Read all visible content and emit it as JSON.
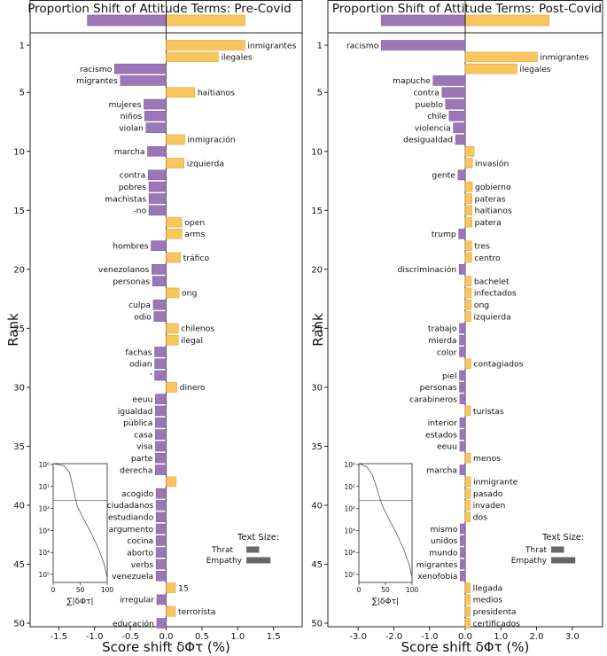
{
  "colors": {
    "positive": "#F8C65E",
    "negative": "#9C77B8",
    "axis": "#222222",
    "positive_edge": "#E0A63A",
    "negative_edge": "#7E5B9C"
  },
  "chart_data": [
    {
      "type": "bar",
      "orientation": "horizontal",
      "title": "Proportion Shift of Attitude Terms: Pre-Covid",
      "xlabel": "Score shift δΦτ (%)",
      "ylabel": "Rank",
      "xlim": [
        -1.9,
        1.9
      ],
      "xticks": [
        -1.5,
        -1.0,
        -0.5,
        0.0,
        0.5,
        1.0,
        1.5
      ],
      "xtick_labels": [
        "-1.5",
        "-1.0",
        "-0.5",
        "0.0",
        "0.5",
        "1.0",
        "1.5"
      ],
      "yticks": [
        1,
        5,
        10,
        15,
        20,
        25,
        30,
        35,
        40,
        45,
        50
      ],
      "summary_bar": {
        "negative": -1.1,
        "positive": 1.1
      },
      "bars": [
        {
          "rank": 1,
          "label": "inmigrantes",
          "value": 1.1
        },
        {
          "rank": 2,
          "label": "ilegales",
          "value": 0.73
        },
        {
          "rank": 3,
          "label": "racismo",
          "value": -0.72
        },
        {
          "rank": 4,
          "label": "migrantes",
          "value": -0.64
        },
        {
          "rank": 5,
          "label": "haitianos",
          "value": 0.4
        },
        {
          "rank": 6,
          "label": "mujeres",
          "value": -0.31
        },
        {
          "rank": 7,
          "label": "niños",
          "value": -0.3
        },
        {
          "rank": 8,
          "label": "violan",
          "value": -0.28
        },
        {
          "rank": 9,
          "label": "inmigración",
          "value": 0.26
        },
        {
          "rank": 10,
          "label": "marcha",
          "value": -0.26
        },
        {
          "rank": 11,
          "label": "izquierda",
          "value": 0.25
        },
        {
          "rank": 12,
          "label": "contra",
          "value": -0.25
        },
        {
          "rank": 13,
          "label": "pobres",
          "value": -0.24
        },
        {
          "rank": 14,
          "label": "machistas",
          "value": -0.24
        },
        {
          "rank": 15,
          "label": "-no",
          "value": -0.24
        },
        {
          "rank": 16,
          "label": "open",
          "value": 0.22
        },
        {
          "rank": 17,
          "label": "arms",
          "value": 0.22
        },
        {
          "rank": 18,
          "label": "hombres",
          "value": -0.21
        },
        {
          "rank": 19,
          "label": "tráfico",
          "value": 0.2
        },
        {
          "rank": 20,
          "label": "venezolanos",
          "value": -0.2
        },
        {
          "rank": 21,
          "label": "personas",
          "value": -0.19
        },
        {
          "rank": 22,
          "label": "ong",
          "value": 0.18
        },
        {
          "rank": 23,
          "label": "culpa",
          "value": -0.18
        },
        {
          "rank": 24,
          "label": "odio",
          "value": -0.17
        },
        {
          "rank": 25,
          "label": "chilenos",
          "value": 0.17
        },
        {
          "rank": 26,
          "label": "ilegal",
          "value": 0.17
        },
        {
          "rank": 27,
          "label": "fachas",
          "value": -0.16
        },
        {
          "rank": 28,
          "label": "odian",
          "value": -0.16
        },
        {
          "rank": 29,
          "label": "'",
          "value": -0.16
        },
        {
          "rank": 30,
          "label": "dinero",
          "value": 0.15
        },
        {
          "rank": 31,
          "label": "eeuu",
          "value": -0.15
        },
        {
          "rank": 32,
          "label": "igualdad",
          "value": -0.15
        },
        {
          "rank": 33,
          "label": "pública",
          "value": -0.15
        },
        {
          "rank": 34,
          "label": "casa",
          "value": -0.15
        },
        {
          "rank": 35,
          "label": "visa",
          "value": -0.15
        },
        {
          "rank": 36,
          "label": "parte",
          "value": -0.15
        },
        {
          "rank": 37,
          "label": "derecha",
          "value": -0.15
        },
        {
          "rank": 38,
          "label": "",
          "value": 0.14
        },
        {
          "rank": 39,
          "label": "acogido",
          "value": -0.14
        },
        {
          "rank": 40,
          "label": "ciudadanos",
          "value": -0.14
        },
        {
          "rank": 41,
          "label": "estudiando",
          "value": -0.14
        },
        {
          "rank": 42,
          "label": "argumento",
          "value": -0.14
        },
        {
          "rank": 43,
          "label": "cocina",
          "value": -0.14
        },
        {
          "rank": 44,
          "label": "aborto",
          "value": -0.14
        },
        {
          "rank": 45,
          "label": "verbs",
          "value": -0.14
        },
        {
          "rank": 46,
          "label": "venezuela",
          "value": -0.14
        },
        {
          "rank": 47,
          "label": "15",
          "value": 0.13
        },
        {
          "rank": 48,
          "label": "irregular",
          "value": -0.13
        },
        {
          "rank": 49,
          "label": "terrorista",
          "value": 0.13
        },
        {
          "rank": 50,
          "label": "educación",
          "value": -0.13
        }
      ],
      "inset": {
        "xlabel": "∑|δΦτ|",
        "xticks": [
          "0",
          "50",
          "100"
        ],
        "yticks": [
          "10⁰",
          "10¹",
          "10²",
          "10³",
          "10⁴",
          "10⁵"
        ],
        "curve": [
          [
            0,
            0
          ],
          [
            20,
            0.1
          ],
          [
            30,
            0.4
          ],
          [
            35,
            0.9
          ],
          [
            40,
            1.5
          ],
          [
            45,
            2.0
          ],
          [
            55,
            2.5
          ],
          [
            70,
            3.2
          ],
          [
            85,
            4.0
          ],
          [
            95,
            4.7
          ],
          [
            100,
            5.3
          ]
        ],
        "hline_log": 1.7
      },
      "legend": {
        "title": "Text Size:",
        "items": [
          {
            "label": "Thrat",
            "size": 0.45
          },
          {
            "label": "Empathy",
            "size": 0.85
          }
        ]
      }
    },
    {
      "type": "bar",
      "orientation": "horizontal",
      "title": "Proportion Shift of Attitude Terms: Post-Covid",
      "xlabel": "Score shift δΦτ (%)",
      "ylabel": "Rank",
      "xlim": [
        -3.85,
        3.85
      ],
      "xticks": [
        -3.0,
        -2.0,
        -1.0,
        0.0,
        1.0,
        2.0,
        3.0
      ],
      "xtick_labels": [
        "-3.0",
        "-2.0",
        "-1.0",
        "0.0",
        "1.0",
        "2.0",
        "3.0"
      ],
      "yticks": [
        1,
        5,
        10,
        15,
        20,
        25,
        30,
        35,
        40,
        45,
        50
      ],
      "summary_bar": {
        "negative": -2.35,
        "positive": 2.35
      },
      "bars": [
        {
          "rank": 1,
          "label": "racismo",
          "value": -2.35
        },
        {
          "rank": 2,
          "label": "inmigrantes",
          "value": 2.02
        },
        {
          "rank": 3,
          "label": "ilegales",
          "value": 1.45
        },
        {
          "rank": 4,
          "label": "mapuche",
          "value": -0.9
        },
        {
          "rank": 5,
          "label": "contra",
          "value": -0.65
        },
        {
          "rank": 6,
          "label": "pueblo",
          "value": -0.55
        },
        {
          "rank": 7,
          "label": "chile",
          "value": -0.45
        },
        {
          "rank": 8,
          "label": "violencia",
          "value": -0.33
        },
        {
          "rank": 9,
          "label": "desigualdad",
          "value": -0.27
        },
        {
          "rank": 10,
          "label": "",
          "value": 0.25
        },
        {
          "rank": 11,
          "label": "invasión",
          "value": 0.2
        },
        {
          "rank": 12,
          "label": "gente",
          "value": -0.2
        },
        {
          "rank": 13,
          "label": "gobierno",
          "value": 0.2
        },
        {
          "rank": 14,
          "label": "pateras",
          "value": 0.19
        },
        {
          "rank": 15,
          "label": "haitianos",
          "value": 0.19
        },
        {
          "rank": 16,
          "label": "patera",
          "value": 0.19
        },
        {
          "rank": 17,
          "label": "trump",
          "value": -0.18
        },
        {
          "rank": 18,
          "label": "tres",
          "value": 0.18
        },
        {
          "rank": 19,
          "label": "centro",
          "value": 0.18
        },
        {
          "rank": 20,
          "label": "discriminación",
          "value": -0.17
        },
        {
          "rank": 21,
          "label": "bachelet",
          "value": 0.17
        },
        {
          "rank": 22,
          "label": "infectados",
          "value": 0.17
        },
        {
          "rank": 23,
          "label": "ong",
          "value": 0.17
        },
        {
          "rank": 24,
          "label": "izquierda",
          "value": 0.16
        },
        {
          "rank": 25,
          "label": "trabajo",
          "value": -0.16
        },
        {
          "rank": 26,
          "label": "mierda",
          "value": -0.16
        },
        {
          "rank": 27,
          "label": "color",
          "value": -0.16
        },
        {
          "rank": 28,
          "label": "contagiados",
          "value": 0.16
        },
        {
          "rank": 29,
          "label": "piel",
          "value": -0.16
        },
        {
          "rank": 30,
          "label": "personas",
          "value": -0.16
        },
        {
          "rank": 31,
          "label": "carabineros",
          "value": -0.15
        },
        {
          "rank": 32,
          "label": "turistas",
          "value": 0.15
        },
        {
          "rank": 33,
          "label": "interior",
          "value": -0.15
        },
        {
          "rank": 34,
          "label": "estados",
          "value": -0.15
        },
        {
          "rank": 35,
          "label": "eeuu",
          "value": -0.15
        },
        {
          "rank": 36,
          "label": "menos",
          "value": 0.15
        },
        {
          "rank": 37,
          "label": "marcha",
          "value": -0.15
        },
        {
          "rank": 38,
          "label": "inmigrante",
          "value": 0.15
        },
        {
          "rank": 39,
          "label": "pasado",
          "value": 0.15
        },
        {
          "rank": 40,
          "label": "invaden",
          "value": 0.14
        },
        {
          "rank": 41,
          "label": "dos",
          "value": 0.14
        },
        {
          "rank": 42,
          "label": "mismo",
          "value": -0.14
        },
        {
          "rank": 43,
          "label": "unidos",
          "value": -0.14
        },
        {
          "rank": 44,
          "label": "mundo",
          "value": -0.14
        },
        {
          "rank": 45,
          "label": "migrantes",
          "value": -0.14
        },
        {
          "rank": 46,
          "label": "xenofobia",
          "value": -0.14
        },
        {
          "rank": 47,
          "label": "llegada",
          "value": 0.14
        },
        {
          "rank": 48,
          "label": "medios",
          "value": 0.14
        },
        {
          "rank": 49,
          "label": "presidenta",
          "value": 0.14
        },
        {
          "rank": 50,
          "label": "certificados",
          "value": 0.14
        }
      ],
      "inset": {
        "xlabel": "∑|δΦτ|",
        "xticks": [
          "0",
          "50",
          "100"
        ],
        "yticks": [
          "10⁰",
          "10¹",
          "10²",
          "10³",
          "10⁴",
          "10⁵"
        ],
        "curve": [
          [
            0,
            0
          ],
          [
            15,
            0.15
          ],
          [
            25,
            0.5
          ],
          [
            32,
            1.0
          ],
          [
            38,
            1.5
          ],
          [
            45,
            2.0
          ],
          [
            55,
            2.5
          ],
          [
            70,
            3.2
          ],
          [
            85,
            4.0
          ],
          [
            95,
            4.7
          ],
          [
            100,
            5.3
          ]
        ],
        "hline_log": 1.7
      },
      "legend": {
        "title": "Text Size:",
        "items": [
          {
            "label": "Thrat",
            "size": 0.45
          },
          {
            "label": "Empathy",
            "size": 0.85
          }
        ]
      }
    }
  ]
}
